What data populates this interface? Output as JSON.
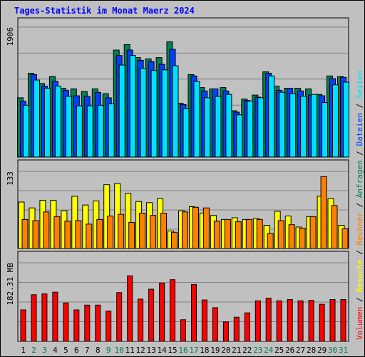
{
  "title": "Tages-Statistik im Monat Maerz 2024",
  "colors": {
    "title": "#0000ff",
    "background": "#c0c0c0",
    "anfragen": "#008050",
    "dateien": "#0040ff",
    "seiten": "#00e0ff",
    "besuche": "#ffff00",
    "rechner": "#ff8000",
    "volumen": "#ff0000",
    "day_weekday": "#000000",
    "day_weekend": "#008040"
  },
  "chart_data": {
    "type": "bar",
    "days": [
      "1",
      "2",
      "3",
      "4",
      "5",
      "6",
      "7",
      "8",
      "9",
      "10",
      "11",
      "12",
      "13",
      "14",
      "15",
      "16",
      "17",
      "18",
      "19",
      "20",
      "21",
      "22",
      "23",
      "24",
      "25",
      "26",
      "27",
      "28",
      "29",
      "30",
      "31"
    ],
    "weekend_days": [
      "2",
      "3",
      "9",
      "10",
      "16",
      "17",
      "23",
      "24",
      "30",
      "31"
    ],
    "panels": [
      {
        "max_label": "1906",
        "ymax": 1906,
        "side_labels": [
          {
            "text": "Anfragen",
            "color_key": "anfragen"
          },
          {
            "text": "Dateien",
            "color_key": "dateien"
          },
          {
            "text": "Seiten",
            "color_key": "seiten"
          }
        ],
        "series": [
          {
            "name": "Anfragen",
            "color_key": "anfragen",
            "values": [
              870,
              1230,
              1080,
              1180,
              1010,
              1000,
              960,
              1000,
              930,
              1570,
              1650,
              1460,
              1440,
              1460,
              1690,
              790,
              1210,
              1020,
              1000,
              1020,
              680,
              850,
              910,
              1250,
              1040,
              1010,
              1010,
              1000,
              920,
              1190,
              1180
            ]
          },
          {
            "name": "Dateien",
            "color_key": "dateien",
            "values": [
              820,
              1210,
              1040,
              1110,
              980,
              900,
              890,
              950,
              870,
              1490,
              1570,
              1420,
              1400,
              1360,
              1580,
              770,
              1190,
              970,
              1000,
              970,
              660,
              830,
              880,
              1230,
              980,
              1010,
              970,
              910,
              900,
              1150,
              1170
            ]
          },
          {
            "name": "Seiten",
            "color_key": "seiten",
            "values": [
              760,
              1130,
              1010,
              1040,
              890,
              750,
              750,
              760,
              780,
              1350,
              1490,
              1300,
              1270,
              1280,
              1340,
              710,
              1110,
              870,
              890,
              920,
              620,
              820,
              870,
              1190,
              950,
              930,
              890,
              920,
              800,
              1060,
              1100
            ]
          }
        ]
      },
      {
        "max_label": "133",
        "ymax": 133,
        "side_labels": [
          {
            "text": "Besuche",
            "color_key": "besuche"
          },
          {
            "text": "Rechner",
            "color_key": "rechner"
          }
        ],
        "series": [
          {
            "name": "Besuche",
            "color_key": "besuche",
            "values": [
              80,
              70,
              83,
              83,
              65,
              90,
              75,
              82,
              110,
              112,
              95,
              81,
              79,
              86,
              30,
              65,
              72,
              61,
              57,
              50,
              53,
              50,
              52,
              40,
              64,
              56,
              37,
              55,
              90,
              86,
              40
            ]
          },
          {
            "name": "Rechner",
            "color_key": "rechner",
            "values": [
              50,
              48,
              63,
              55,
              47,
              48,
              42,
              50,
              56,
              59,
              45,
              61,
              57,
              61,
              28,
              63,
              71,
              70,
              47,
              50,
              46,
              50,
              50,
              26,
              48,
              41,
              35,
              55,
              124,
              74,
              34
            ]
          }
        ]
      },
      {
        "max_label": "182.31 MB",
        "ymax": 182.31,
        "side_labels": [
          {
            "text": "Volumen",
            "color_key": "volumen"
          }
        ],
        "series": [
          {
            "name": "Volumen",
            "color_key": "volumen",
            "values": [
              73,
              108,
              110,
              114,
              89,
              73,
              84,
              84,
              70,
              113,
              152,
              98,
              121,
              135,
              143,
              50,
              132,
              96,
              78,
              45,
              56,
              66,
              94,
              100,
              94,
              97,
              94,
              95,
              86,
              97,
              97
            ]
          }
        ]
      }
    ],
    "separator": "/"
  }
}
